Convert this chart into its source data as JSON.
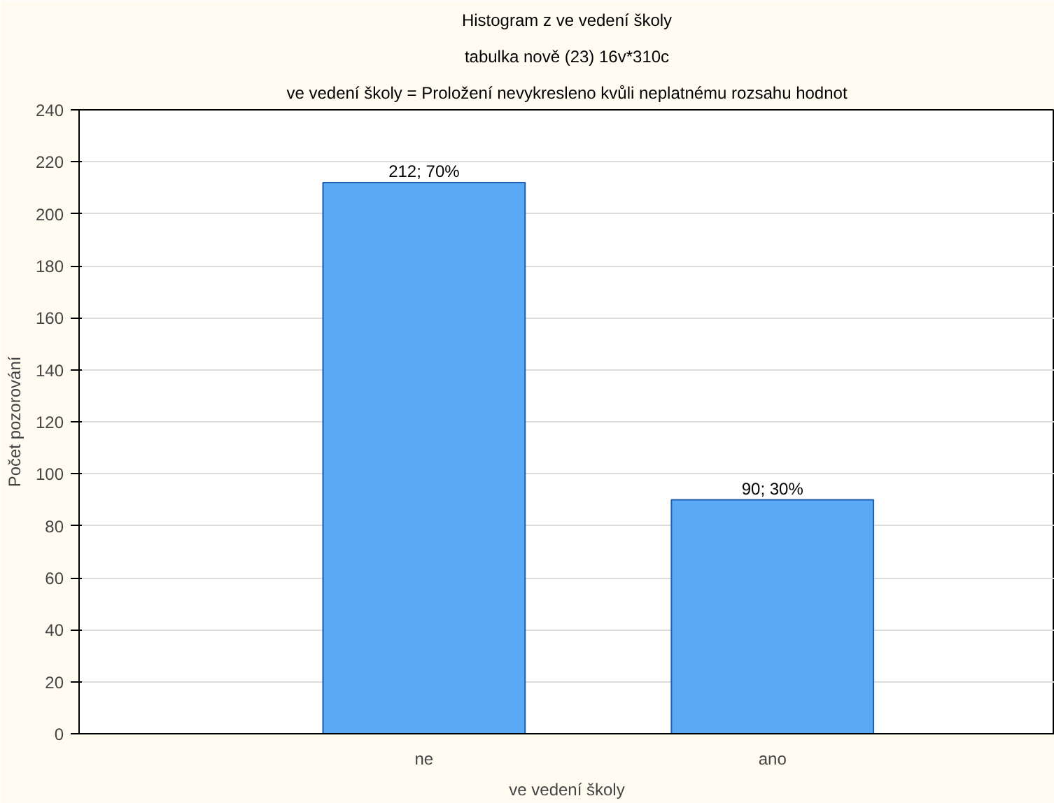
{
  "chart_data": {
    "type": "bar",
    "title": "Histogram z ve vedení školy",
    "subtitle": "tabulka nově (23) 16v*310c",
    "annotations": [
      "ve vedení školy = Proložení nevykresleno kvůli neplatnému rozsahu hodnot"
    ],
    "xlabel": "ve vedení školy",
    "ylabel": "Počet pozorování",
    "categories": [
      "ne",
      "ano"
    ],
    "values": [
      212,
      90
    ],
    "value_labels": [
      "212; 70%",
      "90; 30%"
    ],
    "color": "#5aa9f5",
    "ylim": [
      0,
      240
    ],
    "yticks": [
      0,
      20,
      40,
      60,
      80,
      100,
      120,
      140,
      160,
      180,
      200,
      220,
      240
    ],
    "grid": "y"
  }
}
